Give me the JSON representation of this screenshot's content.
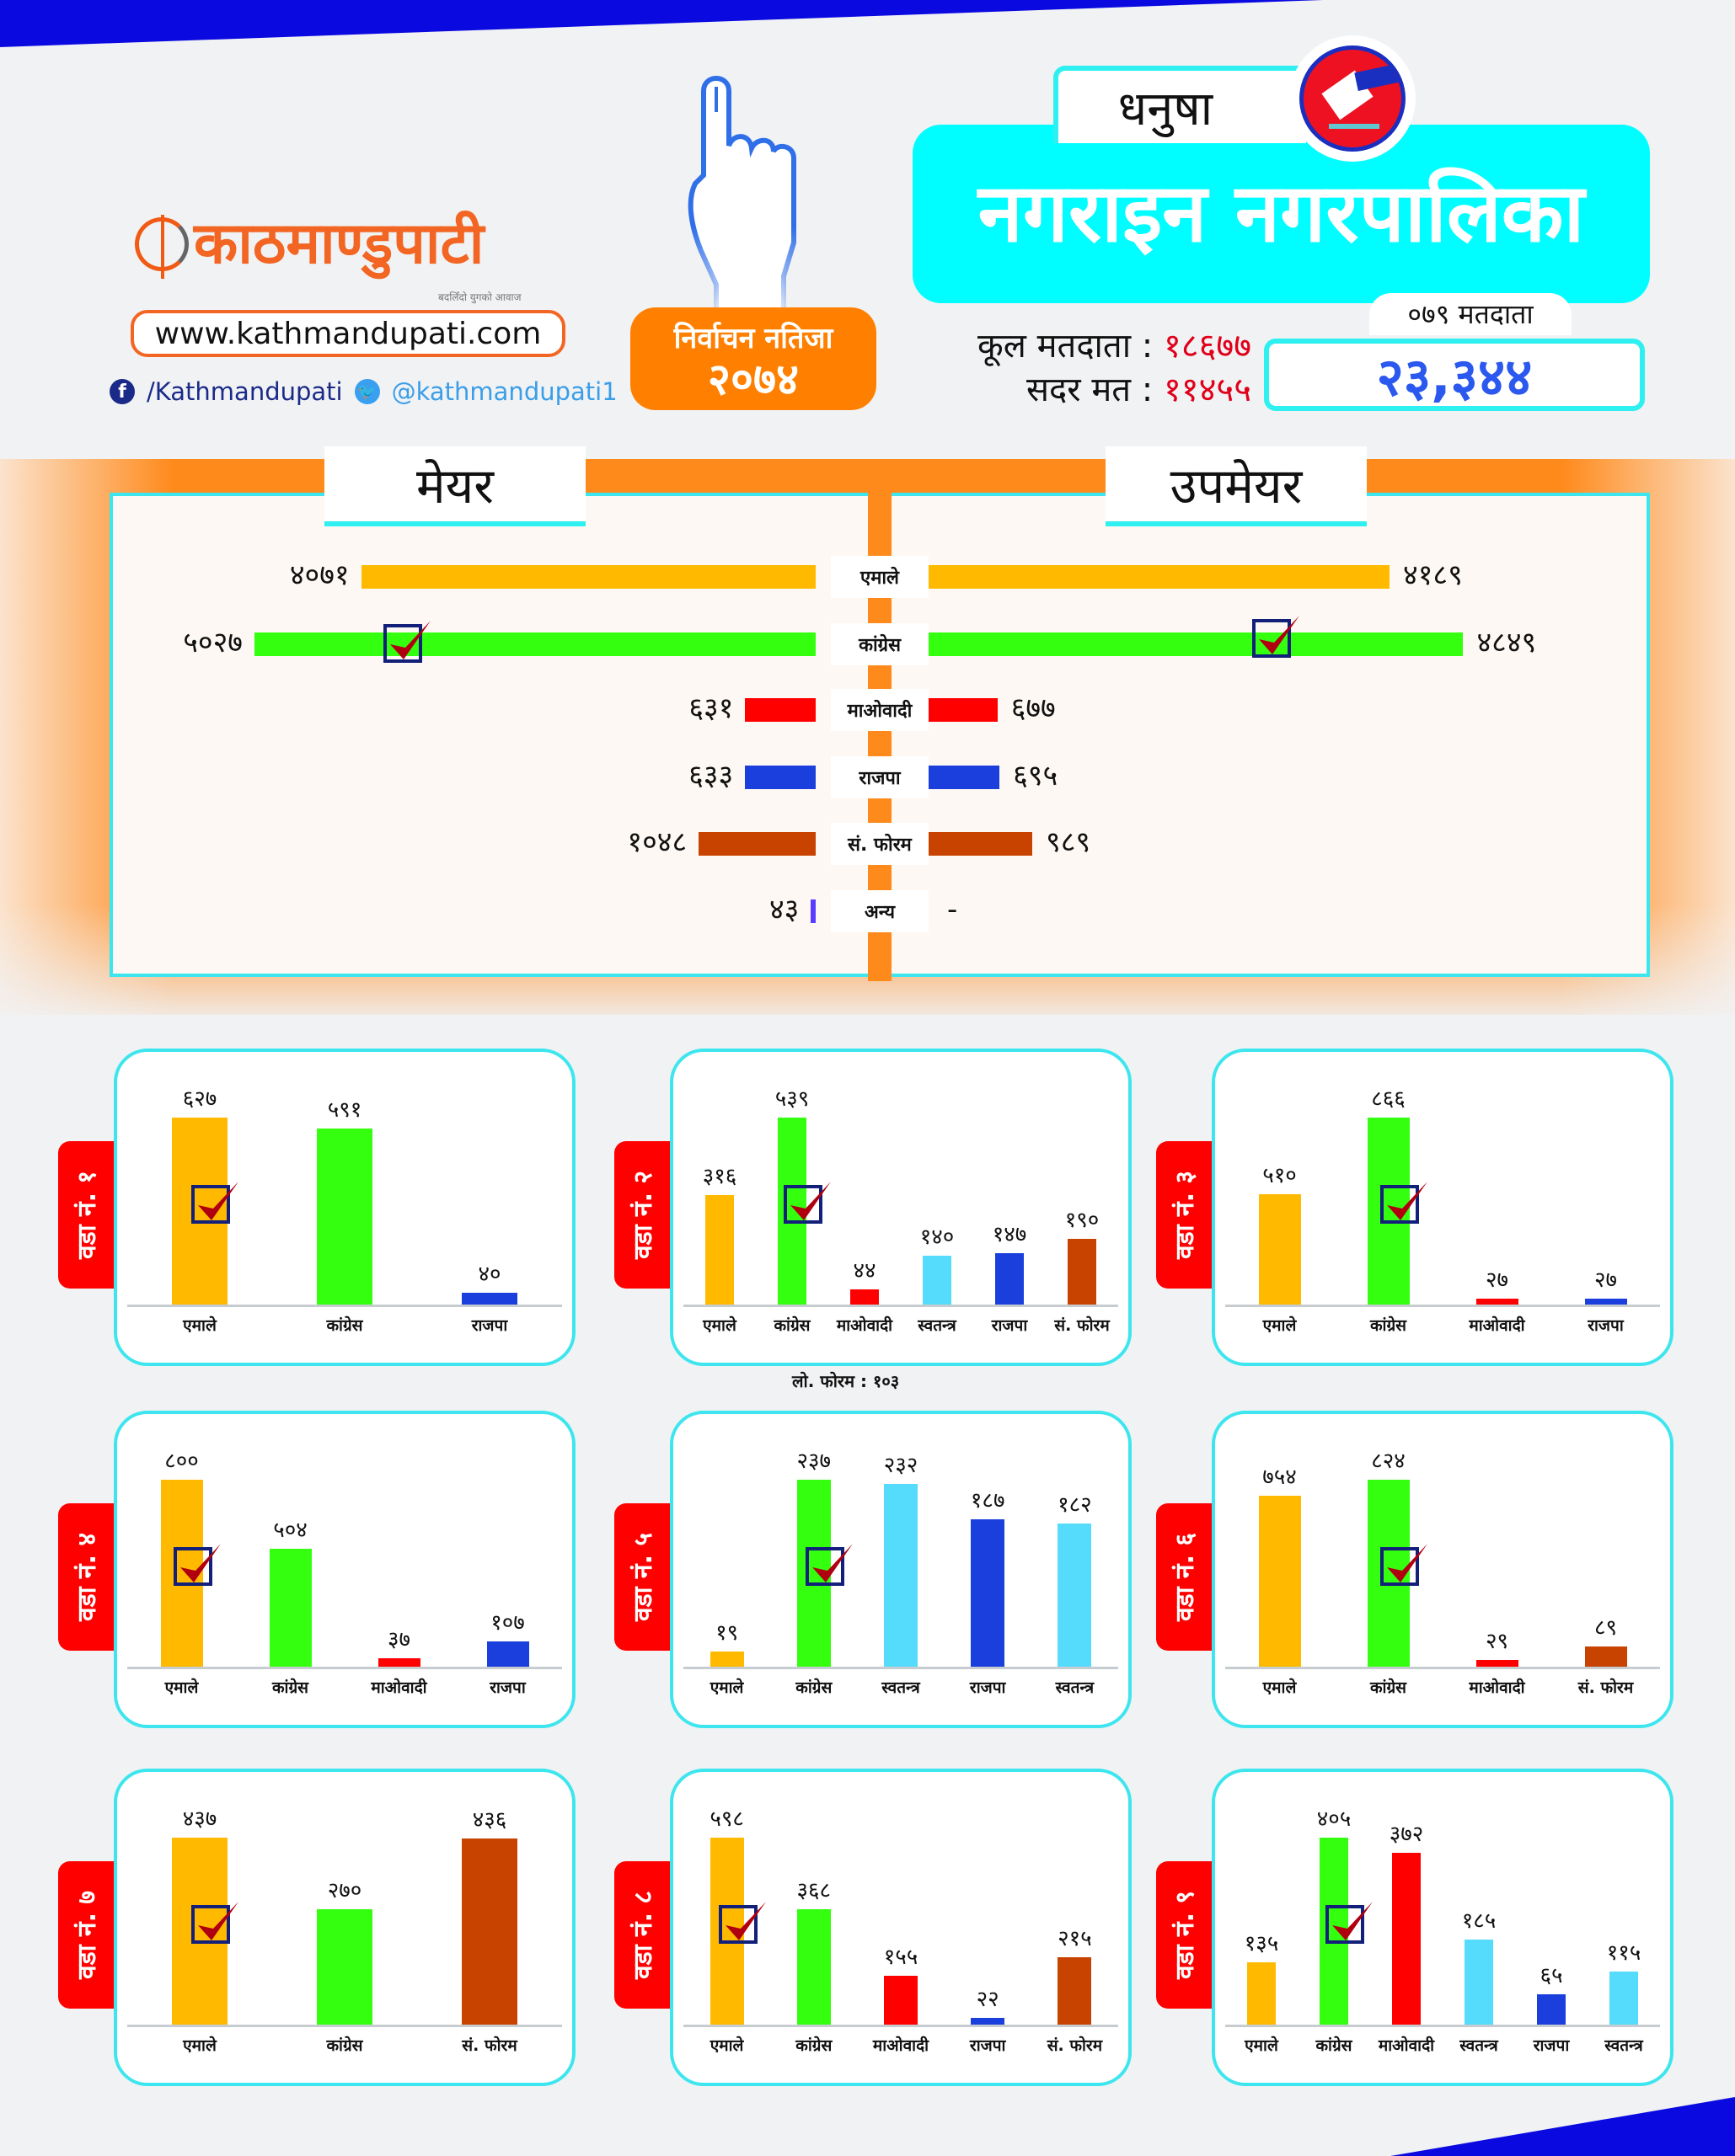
{
  "brand": {
    "logo_text": "काठमाण्डुपाटी",
    "tagline": "बदलिँदो युगको आवाज",
    "url": "www.kathmandupati.com",
    "facebook": "/Kathmandupati",
    "twitter": "@kathmandupati1"
  },
  "election": {
    "title_line1": "निर्वाचन नतिजा",
    "year": "२०७४"
  },
  "header": {
    "district": "धनुषा",
    "municipality": "नगराइन नगरपालिका"
  },
  "stats": {
    "total_voters_label": "कूल मतदाता :",
    "total_voters": "१८६७७",
    "valid_votes_label": "सदर मत :",
    "valid_votes": "११४५५",
    "voters_079_label": "०७९ मतदाता",
    "voters_079": "२३,३४४"
  },
  "colors": {
    "एमाले": "#ffba00",
    "कांग्रेस": "#33ff0f",
    "माओवादी": "#ff0000",
    "राजपा": "#1a3fdc",
    "स्वतन्त्र": "#55dcfc",
    "सं. फोरम": "#c84200",
    "अन्य": "#5a3cff",
    "accent_cyan": "#00fdff",
    "accent_orange": "#ff8000"
  },
  "chart_data": [
    {
      "type": "bar",
      "title": "मेयर / उपमेयर",
      "left_title": "मेयर",
      "right_title": "उपमेयर",
      "categories": [
        "एमाले",
        "कांग्रेस",
        "माओवादी",
        "राजपा",
        "सं. फोरम",
        "अन्य"
      ],
      "series": [
        {
          "name": "मेयर",
          "values": [
            4071,
            5027,
            631,
            633,
            1048,
            43
          ],
          "winner": "कांग्रेस"
        },
        {
          "name": "उपमेयर",
          "values": [
            4189,
            4849,
            677,
            695,
            989,
            null
          ],
          "missing_label": "-",
          "winner": "कांग्रेस"
        }
      ]
    },
    {
      "type": "bar",
      "title": "वडा नं. १",
      "categories": [
        "एमाले",
        "कांग्रेस",
        "राजपा"
      ],
      "values": [
        627,
        591,
        40
      ],
      "winner": "एमाले"
    },
    {
      "type": "bar",
      "title": "वडा नं. २",
      "categories": [
        "एमाले",
        "कांग्रेस",
        "माओवादी",
        "स्वतन्त्र",
        "राजपा",
        "सं. फोरम"
      ],
      "values": [
        316,
        539,
        44,
        140,
        147,
        190
      ],
      "winner": "कांग्रेस",
      "note": "लो. फोरम : १०३"
    },
    {
      "type": "bar",
      "title": "वडा नं. ३",
      "categories": [
        "एमाले",
        "कांग्रेस",
        "माओवादी",
        "राजपा"
      ],
      "values": [
        510,
        866,
        27,
        27
      ],
      "winner": "कांग्रेस"
    },
    {
      "type": "bar",
      "title": "वडा नं. ४",
      "categories": [
        "एमाले",
        "कांग्रेस",
        "माओवादी",
        "राजपा"
      ],
      "values": [
        800,
        504,
        37,
        107
      ],
      "winner": "एमाले"
    },
    {
      "type": "bar",
      "title": "वडा नं. ५",
      "categories": [
        "एमाले",
        "कांग्रेस",
        "स्वतन्त्र",
        "राजपा",
        "स्वतन्त्र"
      ],
      "values": [
        19,
        237,
        232,
        187,
        182
      ],
      "winner": "कांग्रेस"
    },
    {
      "type": "bar",
      "title": "वडा नं. ६",
      "categories": [
        "एमाले",
        "कांग्रेस",
        "माओवादी",
        "सं. फोरम"
      ],
      "values": [
        754,
        824,
        29,
        89
      ],
      "winner": "कांग्रेस"
    },
    {
      "type": "bar",
      "title": "वडा नं. ७",
      "categories": [
        "एमाले",
        "कांग्रेस",
        "सं. फोरम"
      ],
      "values": [
        437,
        270,
        436
      ],
      "winner": "एमाले"
    },
    {
      "type": "bar",
      "title": "वडा नं. ८",
      "categories": [
        "एमाले",
        "कांग्रेस",
        "माओवादी",
        "राजपा",
        "सं. फोरम"
      ],
      "values": [
        598,
        368,
        155,
        22,
        215
      ],
      "winner": "एमाले"
    },
    {
      "type": "bar",
      "title": "वडा नं. ९",
      "categories": [
        "एमाले",
        "कांग्रेस",
        "माओवादी",
        "स्वतन्त्र",
        "राजपा",
        "स्वतन्त्र"
      ],
      "values": [
        135,
        405,
        372,
        185,
        65,
        115
      ],
      "winner": "कांग्रेस"
    }
  ]
}
